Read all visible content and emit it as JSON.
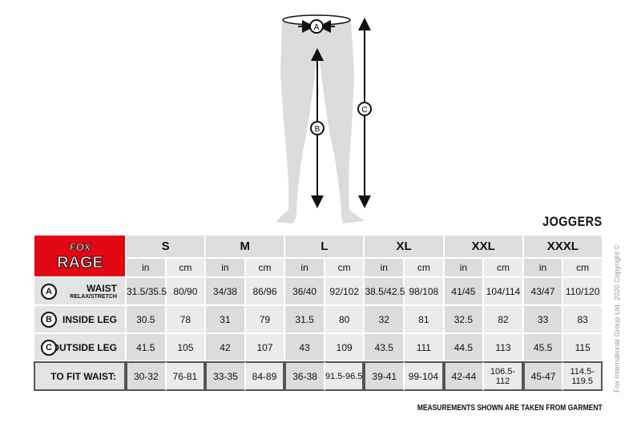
{
  "title": "JOGGERS",
  "brand": "FOX RAGE",
  "brand_color": "#e30613",
  "sizes": [
    "S",
    "M",
    "L",
    "XL",
    "XXL",
    "XXXL"
  ],
  "units": {
    "in": "in",
    "cm": "cm"
  },
  "rows": [
    {
      "marker": "A",
      "label": "WAIST",
      "sublabel": "RELAX/STRETCH",
      "values": [
        "31.5/35.5",
        "80/90",
        "34/38",
        "86/96",
        "36/40",
        "92/102",
        "38.5/42.5",
        "98/108",
        "41/45",
        "104/114",
        "43/47",
        "110/120"
      ]
    },
    {
      "marker": "B",
      "label": "INSIDE LEG",
      "values": [
        "30.5",
        "78",
        "31",
        "79",
        "31.5",
        "80",
        "32",
        "81",
        "32.5",
        "82",
        "33",
        "83"
      ]
    },
    {
      "marker": "C",
      "label": "OUTSIDE LEG",
      "values": [
        "41.5",
        "105",
        "42",
        "107",
        "43",
        "109",
        "43.5",
        "111",
        "44.5",
        "113",
        "45.5",
        "115"
      ]
    }
  ],
  "fit": {
    "label": "TO FIT WAIST:",
    "values": [
      "30-32",
      "76-81",
      "33-35",
      "84-89",
      "36-38",
      "91.5-96.5",
      "39-41",
      "99-104",
      "42-44",
      "106.5-112",
      "45-47",
      "114.5-119.5"
    ]
  },
  "figure_markers": {
    "a": "A",
    "b": "B",
    "c": "C"
  },
  "note": "MEASUREMENTS SHOWN ARE TAKEN FROM GARMENT",
  "copyright": "Fox International Group Ltd. 2020 Copyright ©"
}
